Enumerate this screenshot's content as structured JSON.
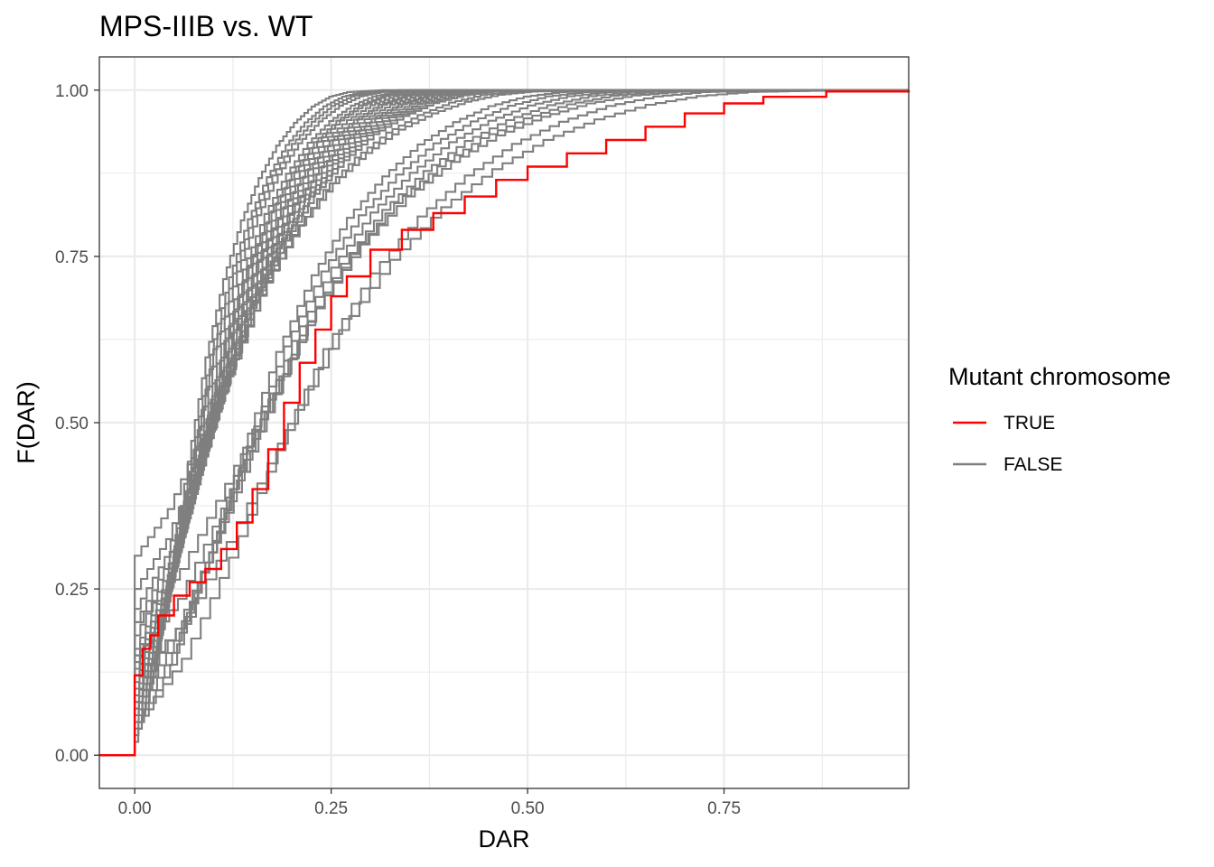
{
  "chart_data": {
    "type": "line",
    "step": true,
    "title": "MPS-IIIB vs. WT",
    "xlabel": "DAR",
    "ylabel": "F(DAR)",
    "xlim": [
      -0.045,
      0.985
    ],
    "ylim": [
      -0.05,
      1.05
    ],
    "x_ticks": [
      0,
      0.25,
      0.5,
      0.75
    ],
    "x_tick_labels": [
      "0.00",
      "0.25",
      "0.50",
      "0.75"
    ],
    "y_ticks": [
      0,
      0.25,
      0.5,
      0.75,
      1
    ],
    "y_tick_labels": [
      "0.00",
      "0.25",
      "0.50",
      "0.75",
      "1.00"
    ],
    "grid": true,
    "legend": {
      "title": "Mutant chromosome",
      "position": "right",
      "entries": [
        {
          "label": "TRUE",
          "color": "#ff0000"
        },
        {
          "label": "FALSE",
          "color": "#7f7f7f"
        }
      ]
    },
    "colors": {
      "TRUE": "#ff0000",
      "FALSE": "#7f7f7f"
    },
    "series_true": {
      "group": "TRUE",
      "points": [
        [
          -0.045,
          0
        ],
        [
          0,
          0
        ],
        [
          0,
          0.12
        ],
        [
          0.01,
          0.13
        ],
        [
          0.01,
          0.16
        ],
        [
          0.02,
          0.18
        ],
        [
          0.03,
          0.21
        ],
        [
          0.05,
          0.24
        ],
        [
          0.07,
          0.26
        ],
        [
          0.09,
          0.28
        ],
        [
          0.11,
          0.31
        ],
        [
          0.13,
          0.35
        ],
        [
          0.15,
          0.4
        ],
        [
          0.17,
          0.46
        ],
        [
          0.19,
          0.53
        ],
        [
          0.21,
          0.59
        ],
        [
          0.23,
          0.64
        ],
        [
          0.25,
          0.69
        ],
        [
          0.27,
          0.72
        ],
        [
          0.3,
          0.76
        ],
        [
          0.34,
          0.79
        ],
        [
          0.38,
          0.815
        ],
        [
          0.42,
          0.84
        ],
        [
          0.46,
          0.865
        ],
        [
          0.5,
          0.885
        ],
        [
          0.55,
          0.905
        ],
        [
          0.6,
          0.925
        ],
        [
          0.65,
          0.945
        ],
        [
          0.7,
          0.965
        ],
        [
          0.75,
          0.98
        ],
        [
          0.8,
          0.99
        ],
        [
          0.88,
          0.998
        ],
        [
          0.985,
          1
        ]
      ]
    },
    "series_false_shape": [
      [
        0,
        0
      ],
      [
        0.05,
        0.1
      ],
      [
        0.1,
        0.26
      ],
      [
        0.15,
        0.43
      ],
      [
        0.2,
        0.59
      ],
      [
        0.25,
        0.71
      ],
      [
        0.3,
        0.8
      ],
      [
        0.35,
        0.865
      ],
      [
        0.4,
        0.915
      ],
      [
        0.45,
        0.95
      ],
      [
        0.5,
        0.975
      ],
      [
        0.55,
        0.99
      ],
      [
        0.6,
        0.997
      ],
      [
        0.7,
        1
      ]
    ],
    "series_false": [
      {
        "group": "FALSE",
        "start": 0.02,
        "scale": 0.45
      },
      {
        "group": "FALSE",
        "start": 0.03,
        "scale": 0.48
      },
      {
        "group": "FALSE",
        "start": 0.05,
        "scale": 0.5
      },
      {
        "group": "FALSE",
        "start": 0.06,
        "scale": 0.52
      },
      {
        "group": "FALSE",
        "start": 0.07,
        "scale": 0.55
      },
      {
        "group": "FALSE",
        "start": 0.08,
        "scale": 0.57
      },
      {
        "group": "FALSE",
        "start": 0.09,
        "scale": 0.58
      },
      {
        "group": "FALSE",
        "start": 0.1,
        "scale": 0.6
      },
      {
        "group": "FALSE",
        "start": 0.11,
        "scale": 0.62
      },
      {
        "group": "FALSE",
        "start": 0.12,
        "scale": 0.63
      },
      {
        "group": "FALSE",
        "start": 0.13,
        "scale": 0.65
      },
      {
        "group": "FALSE",
        "start": 0.14,
        "scale": 0.67
      },
      {
        "group": "FALSE",
        "start": 0.15,
        "scale": 0.68
      },
      {
        "group": "FALSE",
        "start": 0.16,
        "scale": 0.7
      },
      {
        "group": "FALSE",
        "start": 0.18,
        "scale": 0.72
      },
      {
        "group": "FALSE",
        "start": 0.2,
        "scale": 0.74
      },
      {
        "group": "FALSE",
        "start": 0.22,
        "scale": 0.76
      },
      {
        "group": "FALSE",
        "start": 0.25,
        "scale": 0.8
      },
      {
        "group": "FALSE",
        "start": 0.3,
        "scale": 0.84
      },
      {
        "group": "FALSE",
        "start": 0.04,
        "scale": 0.9
      },
      {
        "group": "FALSE",
        "start": 0.06,
        "scale": 0.95
      },
      {
        "group": "FALSE",
        "start": 0.08,
        "scale": 1.0
      },
      {
        "group": "FALSE",
        "start": 0.1,
        "scale": 1.05
      },
      {
        "group": "FALSE",
        "start": 0.15,
        "scale": 1.1
      },
      {
        "group": "FALSE",
        "start": 0.2,
        "scale": 1.15
      },
      {
        "group": "FALSE",
        "start": 0.05,
        "scale": 1.2
      },
      {
        "group": "FALSE",
        "start": 0.12,
        "scale": 1.3
      }
    ]
  }
}
